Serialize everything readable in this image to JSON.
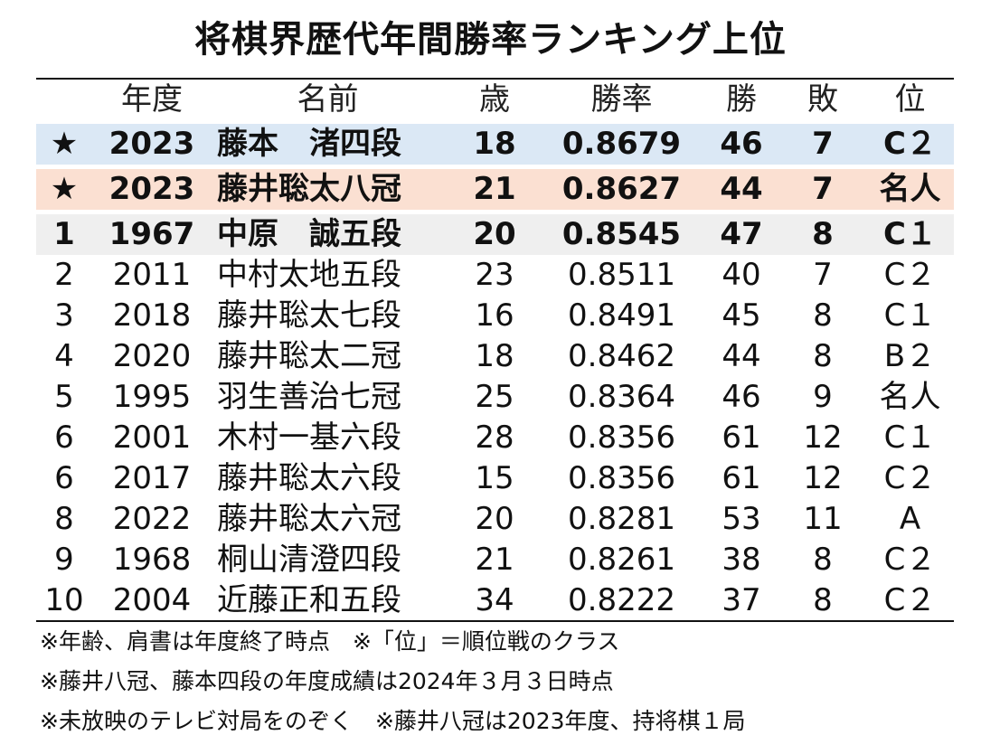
{
  "title": "将棋界歴代年間勝率ランキング上位",
  "headers": {
    "year": "年度",
    "name": "名前",
    "age": "歳",
    "rate": "勝率",
    "wins": "勝",
    "losses": "敗",
    "class": "位"
  },
  "rows": [
    {
      "rank": "★",
      "year": "2023",
      "name": "藤本　渚四段",
      "age": "18",
      "rate": "0.8679",
      "wins": "46",
      "losses": "7",
      "class": "C２"
    },
    {
      "rank": "★",
      "year": "2023",
      "name": "藤井聡太八冠",
      "age": "21",
      "rate": "0.8627",
      "wins": "44",
      "losses": "7",
      "class": "名人"
    },
    {
      "rank": "1",
      "year": "1967",
      "name": "中原　誠五段",
      "age": "20",
      "rate": "0.8545",
      "wins": "47",
      "losses": "8",
      "class": "C１"
    },
    {
      "rank": "2",
      "year": "2011",
      "name": "中村太地五段",
      "age": "23",
      "rate": "0.8511",
      "wins": "40",
      "losses": "7",
      "class": "C２"
    },
    {
      "rank": "3",
      "year": "2018",
      "name": "藤井聡太七段",
      "age": "16",
      "rate": "0.8491",
      "wins": "45",
      "losses": "8",
      "class": "C１"
    },
    {
      "rank": "4",
      "year": "2020",
      "name": "藤井聡太二冠",
      "age": "18",
      "rate": "0.8462",
      "wins": "44",
      "losses": "8",
      "class": "B２"
    },
    {
      "rank": "5",
      "year": "1995",
      "name": "羽生善治七冠",
      "age": "25",
      "rate": "0.8364",
      "wins": "46",
      "losses": "9",
      "class": "名人"
    },
    {
      "rank": "6",
      "year": "2001",
      "name": "木村一基六段",
      "age": "28",
      "rate": "0.8356",
      "wins": "61",
      "losses": "12",
      "class": "C１"
    },
    {
      "rank": "6",
      "year": "2017",
      "name": "藤井聡太六段",
      "age": "15",
      "rate": "0.8356",
      "wins": "61",
      "losses": "12",
      "class": "C２"
    },
    {
      "rank": "8",
      "year": "2022",
      "name": "藤井聡太六冠",
      "age": "20",
      "rate": "0.8281",
      "wins": "53",
      "losses": "11",
      "class": "A"
    },
    {
      "rank": "9",
      "year": "1968",
      "name": "桐山清澄四段",
      "age": "21",
      "rate": "0.8261",
      "wins": "38",
      "losses": "8",
      "class": "C２"
    },
    {
      "rank": "10",
      "year": "2004",
      "name": "近藤正和五段",
      "age": "34",
      "rate": "0.8222",
      "wins": "37",
      "losses": "8",
      "class": "C２"
    }
  ],
  "notes": [
    "※年齢、肩書は年度終了時点　※「位」＝順位戦のクラス",
    "※藤井八冠、藤本四段の年度成績は2024年３月３日時点",
    "※未放映のテレビ対局をのぞく　※藤井八冠は2023年度、持将棋１局"
  ]
}
